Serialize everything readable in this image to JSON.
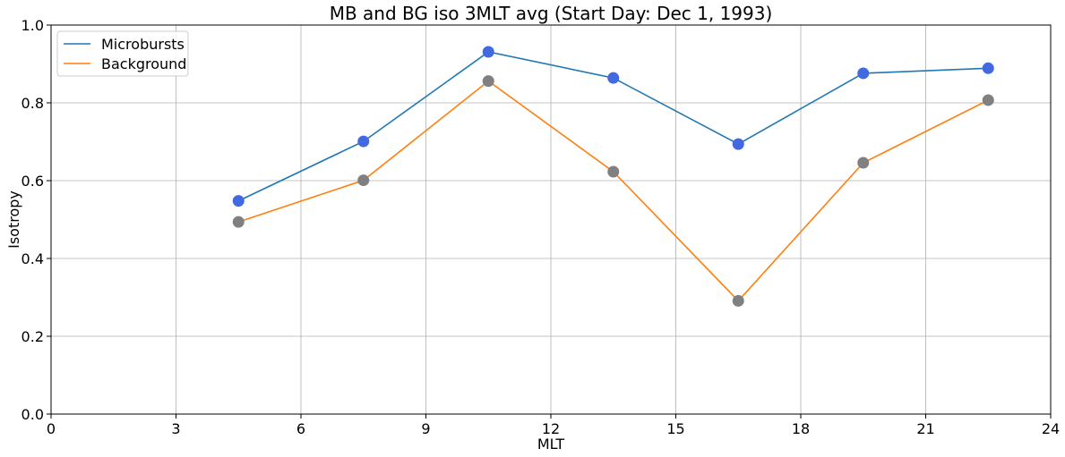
{
  "chart_data": {
    "type": "line",
    "title": "MB and BG iso 3MLT avg (Start Day: Dec 1, 1993)",
    "xlabel": "MLT",
    "ylabel": "Isotropy",
    "xlim": [
      0,
      24
    ],
    "ylim": [
      0.0,
      1.0
    ],
    "xticks": [
      0,
      3,
      6,
      9,
      12,
      15,
      18,
      21,
      24
    ],
    "xtick_labels": [
      "0",
      "3",
      "6",
      "9",
      "12",
      "15",
      "18",
      "21",
      "24"
    ],
    "yticks": [
      0.0,
      0.2,
      0.4,
      0.6,
      0.8,
      1.0
    ],
    "ytick_labels": [
      "0.0",
      "0.2",
      "0.4",
      "0.6",
      "0.8",
      "1.0"
    ],
    "grid": true,
    "legend_position": "top-left",
    "x": [
      4.5,
      7.5,
      10.5,
      13.5,
      16.5,
      19.5,
      22.5
    ],
    "series": [
      {
        "name": "Microbursts",
        "line_color": "#1f77b4",
        "marker_color": "#4169e1",
        "values": [
          0.548,
          0.701,
          0.931,
          0.864,
          0.694,
          0.876,
          0.889
        ]
      },
      {
        "name": "Background",
        "line_color": "#ff7f0e",
        "marker_color": "#808080",
        "values": [
          0.494,
          0.601,
          0.856,
          0.623,
          0.291,
          0.646,
          0.807
        ]
      }
    ]
  }
}
